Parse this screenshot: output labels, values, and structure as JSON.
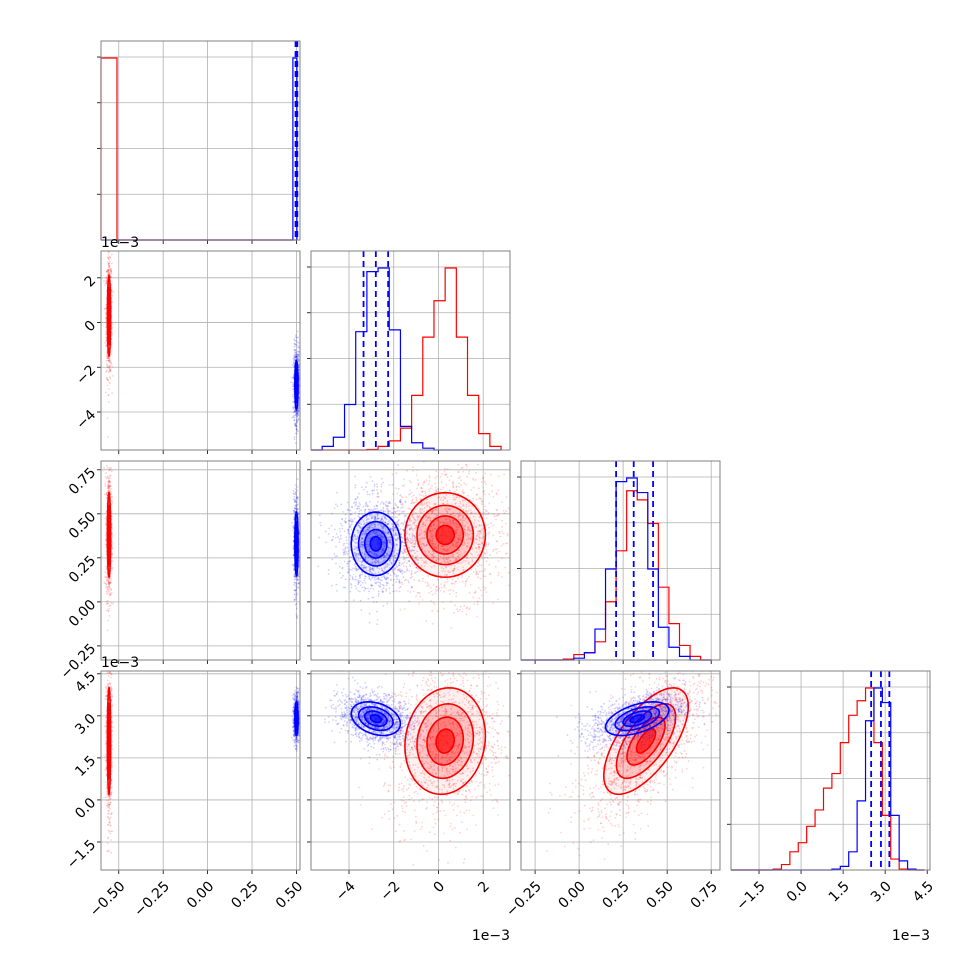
{
  "colors": {
    "series_a": "#ff0000",
    "series_b": "#0000ff",
    "grid": "#b0b0b0",
    "frame": "#808080"
  },
  "chart_data": {
    "type": "corner",
    "grid": true,
    "n_params": 4,
    "axis_ranges": [
      [
        -0.6,
        0.52
      ],
      [
        -5.7,
        3.2
      ],
      [
        -0.33,
        0.8
      ],
      [
        -2.5,
        4.6
      ]
    ],
    "x_ticks": [
      {
        "values": [
          -0.5,
          -0.25,
          0.0,
          0.25,
          0.5
        ],
        "labels": [
          "−0.50",
          "−0.25",
          "0.00",
          "0.25",
          "0.50"
        ],
        "offset": ""
      },
      {
        "values": [
          -4,
          -2,
          0,
          2
        ],
        "labels": [
          "−4",
          "−2",
          "0",
          "2"
        ],
        "offset": "1e−3"
      },
      {
        "values": [
          -0.25,
          0.0,
          0.25,
          0.5,
          0.75
        ],
        "labels": [
          "−0.25",
          "0.00",
          "0.25",
          "0.50",
          "0.75"
        ],
        "offset": ""
      },
      {
        "values": [
          -1.5,
          0.0,
          1.5,
          3.0,
          4.5
        ],
        "labels": [
          "−1.5",
          "0.0",
          "1.5",
          "3.0",
          "4.5"
        ],
        "offset": "1e−3"
      }
    ],
    "y_ticks": [
      null,
      {
        "values": [
          -4,
          -2,
          0,
          2
        ],
        "labels": [
          "−4",
          "−2",
          "0",
          "2"
        ],
        "offset": "1e−3"
      },
      {
        "values": [
          -0.25,
          0.0,
          0.25,
          0.5,
          0.75
        ],
        "labels": [
          "−0.25",
          "0.00",
          "0.25",
          "0.50",
          "0.75"
        ],
        "offset": ""
      },
      {
        "values": [
          -1.5,
          0.0,
          1.5,
          3.0,
          4.5
        ],
        "labels": [
          "−1.5",
          "0.0",
          "1.5",
          "3.0",
          "4.5"
        ],
        "offset": "1e−3"
      }
    ],
    "series": [
      {
        "color": "#ff0000",
        "mean": [
          -0.555,
          0.3,
          0.38,
          2.1
        ],
        "sd": [
          0.005,
          0.9,
          0.12,
          0.95
        ],
        "corr": [
          [
            0,
            0.05
          ],
          [
            0,
            0.1
          ],
          [
            0.6,
            0.65
          ]
        ]
      },
      {
        "color": "#0000ff",
        "mean": [
          0.5,
          -2.8,
          0.33,
          2.9
        ],
        "sd": [
          0.005,
          0.55,
          0.09,
          0.3
        ],
        "corr": [
          [
            0,
            0.05
          ],
          [
            0,
            -0.3
          ],
          [
            -0.6,
            0.5
          ]
        ]
      }
    ],
    "quantile_lines": {
      "color": "#0000ff",
      "style": "dashed",
      "values": [
        [
          0.495,
          0.5,
          0.505
        ],
        [
          -3.35,
          -2.8,
          -2.25
        ],
        [
          0.21,
          0.31,
          0.42
        ],
        [
          2.5,
          2.85,
          3.15
        ]
      ]
    },
    "histograms": [
      {
        "bins": [
          -0.6,
          -0.5775,
          -0.555,
          -0.5325,
          -0.51,
          -0.4875,
          -0.465,
          -0.4425,
          -0.42,
          -0.3975,
          -0.375,
          -0.3525,
          -0.33,
          -0.3075,
          -0.285,
          -0.2625,
          -0.24,
          -0.2175,
          -0.195,
          -0.1725,
          -0.15,
          -0.1275,
          -0.105,
          -0.0825,
          -0.06,
          -0.0375,
          -0.015,
          0.0075,
          0.03,
          0.0525,
          0.075,
          0.0975,
          0.12,
          0.1425,
          0.165,
          0.1875,
          0.21,
          0.2325,
          0.255,
          0.2775,
          0.3,
          0.3225,
          0.345,
          0.3675,
          0.39,
          0.4125,
          0.435,
          0.4575,
          0.48,
          0.5025
        ],
        "red": [
          1,
          1,
          1,
          1,
          0,
          0,
          0,
          0,
          0,
          0,
          0,
          0,
          0,
          0,
          0,
          0,
          0,
          0,
          0,
          0,
          0,
          0,
          0,
          0,
          0,
          0,
          0,
          0,
          0,
          0,
          0,
          0,
          0,
          0,
          0,
          0,
          0,
          0,
          0,
          0,
          0,
          0,
          0,
          0,
          0,
          0,
          0,
          0,
          0
        ],
        "blue": [
          0,
          0,
          0,
          0,
          0,
          0,
          0,
          0,
          0,
          0,
          0,
          0,
          0,
          0,
          0,
          0,
          0,
          0,
          0,
          0,
          0,
          0,
          0,
          0,
          0,
          0,
          0,
          0,
          0,
          0,
          0,
          0,
          0,
          0,
          0,
          0,
          0,
          0,
          0,
          0,
          0,
          0,
          0,
          0,
          0,
          0,
          0,
          0,
          1
        ]
      },
      {
        "bins": [
          -5.7,
          -5.2,
          -4.7,
          -4.2,
          -3.7,
          -3.2,
          -2.7,
          -2.2,
          -1.7,
          -1.2,
          -0.7,
          -0.2,
          0.3,
          0.8,
          1.3,
          1.8,
          2.3,
          2.8
        ],
        "red": [
          0,
          0,
          0,
          0,
          0,
          0.003,
          0.02,
          0.05,
          0.12,
          0.3,
          0.62,
          0.82,
          1.0,
          0.62,
          0.3,
          0.09,
          0.02
        ],
        "blue": [
          0,
          0.02,
          0.07,
          0.25,
          0.65,
          0.98,
          1.0,
          0.66,
          0.13,
          0.04,
          0.01,
          0,
          0,
          0,
          0,
          0,
          0
        ]
      },
      {
        "bins": [
          -0.33,
          -0.27,
          -0.21,
          -0.15,
          -0.09,
          -0.03,
          0.03,
          0.09,
          0.15,
          0.21,
          0.27,
          0.33,
          0.39,
          0.45,
          0.51,
          0.57,
          0.63,
          0.69,
          0.75
        ],
        "red": [
          0,
          0,
          0,
          0,
          0.005,
          0.03,
          0.04,
          0.1,
          0.32,
          0.6,
          0.93,
          0.88,
          0.75,
          0.4,
          0.2,
          0.08,
          0.02,
          0
        ],
        "blue": [
          0,
          0,
          0,
          0,
          0,
          0.01,
          0.04,
          0.17,
          0.5,
          0.98,
          1.0,
          0.92,
          0.5,
          0.18,
          0.07,
          0.02,
          0,
          0
        ]
      },
      {
        "bins": [
          -2.5,
          -2.2,
          -1.9,
          -1.6,
          -1.3,
          -1.0,
          -0.7,
          -0.4,
          -0.1,
          0.2,
          0.5,
          0.8,
          1.1,
          1.4,
          1.7,
          2.0,
          2.3,
          2.6,
          2.9,
          3.2,
          3.5,
          3.8,
          4.1,
          4.4
        ],
        "red": [
          0,
          0,
          0,
          0,
          0,
          0.005,
          0.03,
          0.1,
          0.15,
          0.24,
          0.33,
          0.45,
          0.53,
          0.7,
          0.85,
          0.93,
          1.0,
          0.7,
          0.3,
          0.06,
          0.005,
          0,
          0
        ],
        "blue": [
          0,
          0,
          0,
          0,
          0,
          0,
          0,
          0,
          0,
          0,
          0,
          0,
          0.005,
          0.02,
          0.1,
          0.38,
          0.82,
          1.0,
          0.92,
          0.3,
          0.05,
          0.005,
          0
        ]
      }
    ]
  }
}
